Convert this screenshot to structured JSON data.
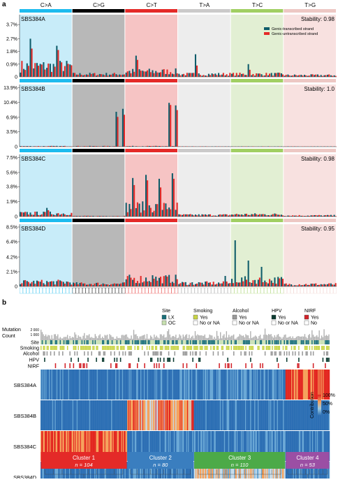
{
  "figure": {
    "panel_a_label": "a",
    "panel_b_label": "b"
  },
  "chart_data": [
    {
      "type": "bar",
      "panel": "a",
      "categories": [
        "C>A",
        "C>G",
        "C>T",
        "T>A",
        "T>C",
        "T>G"
      ],
      "category_colors": [
        "#1ebbee",
        "#000000",
        "#e42a28",
        "#cbcaca",
        "#a1cf63",
        "#edc8c4"
      ],
      "category_bg_colors": [
        "#c8ecf9",
        "#b8b8b8",
        "#f6c4c4",
        "#ededed",
        "#e2efd3",
        "#f8e1e0"
      ],
      "contexts_per_category": 16,
      "legend": [
        "Genic-transcribed strand",
        "Genic-untranscribed strand"
      ],
      "legend_colors": [
        "#0e5c6a",
        "#e42a28"
      ],
      "signatures": [
        {
          "name": "SBS384A",
          "stability": "Stability: 0.98",
          "yticks": [
            "0.9%",
            "1.8%",
            "2.7%",
            "3.7%"
          ],
          "ymax": 4.4,
          "profile_level": [
            1.0,
            0.25,
            0.5,
            0.25,
            0.25,
            0.15
          ],
          "peaks": [
            {
              "category": 0,
              "context": 3,
              "transcribed": 2.7,
              "untranscribed": 2.0
            },
            {
              "category": 0,
              "context": 11,
              "transcribed": 2.2,
              "untranscribed": 1.9
            },
            {
              "category": 2,
              "context": 3,
              "transcribed": 1.5,
              "untranscribed": 1.2
            },
            {
              "category": 3,
              "context": 5,
              "transcribed": 1.6,
              "untranscribed": 0.8
            },
            {
              "category": 4,
              "context": 5,
              "transcribed": 0.9,
              "untranscribed": 0.5
            }
          ]
        },
        {
          "name": "SBS384B",
          "stability": "Stability: 1.0",
          "yticks": [
            "3.5%",
            "6.9%",
            "10.4%",
            "13.9%"
          ],
          "ymax": 14.6,
          "profile_level": [
            0.05,
            0.05,
            0.05,
            0.02,
            0.02,
            0.02
          ],
          "peaks": [
            {
              "category": 1,
              "context": 13,
              "transcribed": 8.2,
              "untranscribed": 7.0
            },
            {
              "category": 1,
              "context": 15,
              "transcribed": 8.9,
              "untranscribed": 7.5
            },
            {
              "category": 2,
              "context": 13,
              "transcribed": 10.3,
              "untranscribed": 9.8
            },
            {
              "category": 2,
              "context": 15,
              "transcribed": 9.7,
              "untranscribed": 8.6
            }
          ]
        },
        {
          "name": "SBS384C",
          "stability": "Stability: 0.98",
          "yticks": [
            "1.9%",
            "3.8%",
            "5.6%",
            "7.5%"
          ],
          "ymax": 7.9,
          "profile_level": [
            0.3,
            0.05,
            0.9,
            0.15,
            0.2,
            0.1
          ],
          "peaks": [
            {
              "category": 2,
              "context": 2,
              "transcribed": 4.9,
              "untranscribed": 4.0
            },
            {
              "category": 2,
              "context": 6,
              "transcribed": 5.3,
              "untranscribed": 4.6
            },
            {
              "category": 2,
              "context": 10,
              "transcribed": 4.8,
              "untranscribed": 3.7
            },
            {
              "category": 2,
              "context": 14,
              "transcribed": 5.5,
              "untranscribed": 4.8
            },
            {
              "category": 0,
              "context": 8,
              "transcribed": 1.1,
              "untranscribed": 0.8
            }
          ]
        },
        {
          "name": "SBS384D",
          "stability": "Stability: 0.95",
          "yticks": [
            "2.1%",
            "4.2%",
            "6.4%",
            "8.5%"
          ],
          "ymax": 8.9,
          "profile_level": [
            0.4,
            0.25,
            0.7,
            0.3,
            0.6,
            0.2
          ],
          "peaks": [
            {
              "category": 4,
              "context": 1,
              "transcribed": 6.6,
              "untranscribed": 0.6
            },
            {
              "category": 4,
              "context": 5,
              "transcribed": 3.7,
              "untranscribed": 0.6
            },
            {
              "category": 4,
              "context": 9,
              "transcribed": 2.8,
              "untranscribed": 0.6
            },
            {
              "category": 2,
              "context": 8,
              "transcribed": 1.6,
              "untranscribed": 1.1
            },
            {
              "category": 3,
              "context": 14,
              "transcribed": 1.5,
              "untranscribed": 0.7
            }
          ]
        }
      ]
    },
    {
      "type": "heatmap",
      "panel": "b",
      "mutation_count_label": "Mutation\nCount",
      "mutation_count_ticks": [
        "2 000",
        "1 000"
      ],
      "track_labels": [
        "Site",
        "Smoking",
        "Alcohol",
        "HPV",
        "NIRF"
      ],
      "legend_groups": [
        {
          "title": "Site",
          "entries": [
            {
              "label": "LX",
              "color": "#176e78"
            },
            {
              "label": "OC",
              "color": "#c7e0b0"
            }
          ]
        },
        {
          "title": "Smoking",
          "entries": [
            {
              "label": "Yes",
              "color": "#c9d546"
            },
            {
              "label": "No or NA",
              "color": "#ffffff"
            }
          ]
        },
        {
          "title": "Alcohol",
          "entries": [
            {
              "label": "Yes",
              "color": "#9a9a9a"
            },
            {
              "label": "No or NA",
              "color": "#ffffff"
            }
          ]
        },
        {
          "title": "HPV",
          "entries": [
            {
              "label": "Yes",
              "color": "#0b3b30"
            },
            {
              "label": "No or NA",
              "color": "#ffffff"
            }
          ]
        },
        {
          "title": "NIRF",
          "entries": [
            {
              "label": "Yes",
              "color": "#d3232a"
            },
            {
              "label": "No",
              "color": "#ffffff"
            }
          ]
        }
      ],
      "rows": [
        "SBS384A",
        "SBS384B",
        "SBS384C",
        "SBS384D"
      ],
      "contribution_legend": {
        "title": "Contribution",
        "ticks": [
          "100%",
          "50%",
          "0%"
        ],
        "colors": [
          "#e3261f",
          "#f5a15b",
          "#9fcbe0",
          "#2c6fb4"
        ]
      },
      "clusters": [
        {
          "name": "Cluster 1",
          "n_label": "n = 104",
          "n": 104,
          "color": "#e42a28",
          "mean_contribution": [
            0.15,
            0.1,
            0.75,
            0.15
          ]
        },
        {
          "name": "Cluster 2",
          "n_label": "n = 80",
          "n": 80,
          "color": "#3a7ebf",
          "mean_contribution": [
            0.2,
            0.65,
            0.15,
            0.2
          ]
        },
        {
          "name": "Cluster 3",
          "n_label": "n = 110",
          "n": 110,
          "color": "#4caa48",
          "mean_contribution": [
            0.2,
            0.15,
            0.2,
            0.5
          ]
        },
        {
          "name": "Cluster 4",
          "n_label": "n = 53",
          "n": 53,
          "color": "#9b4fa4",
          "mean_contribution": [
            0.8,
            0.1,
            0.12,
            0.15
          ]
        }
      ]
    }
  ]
}
